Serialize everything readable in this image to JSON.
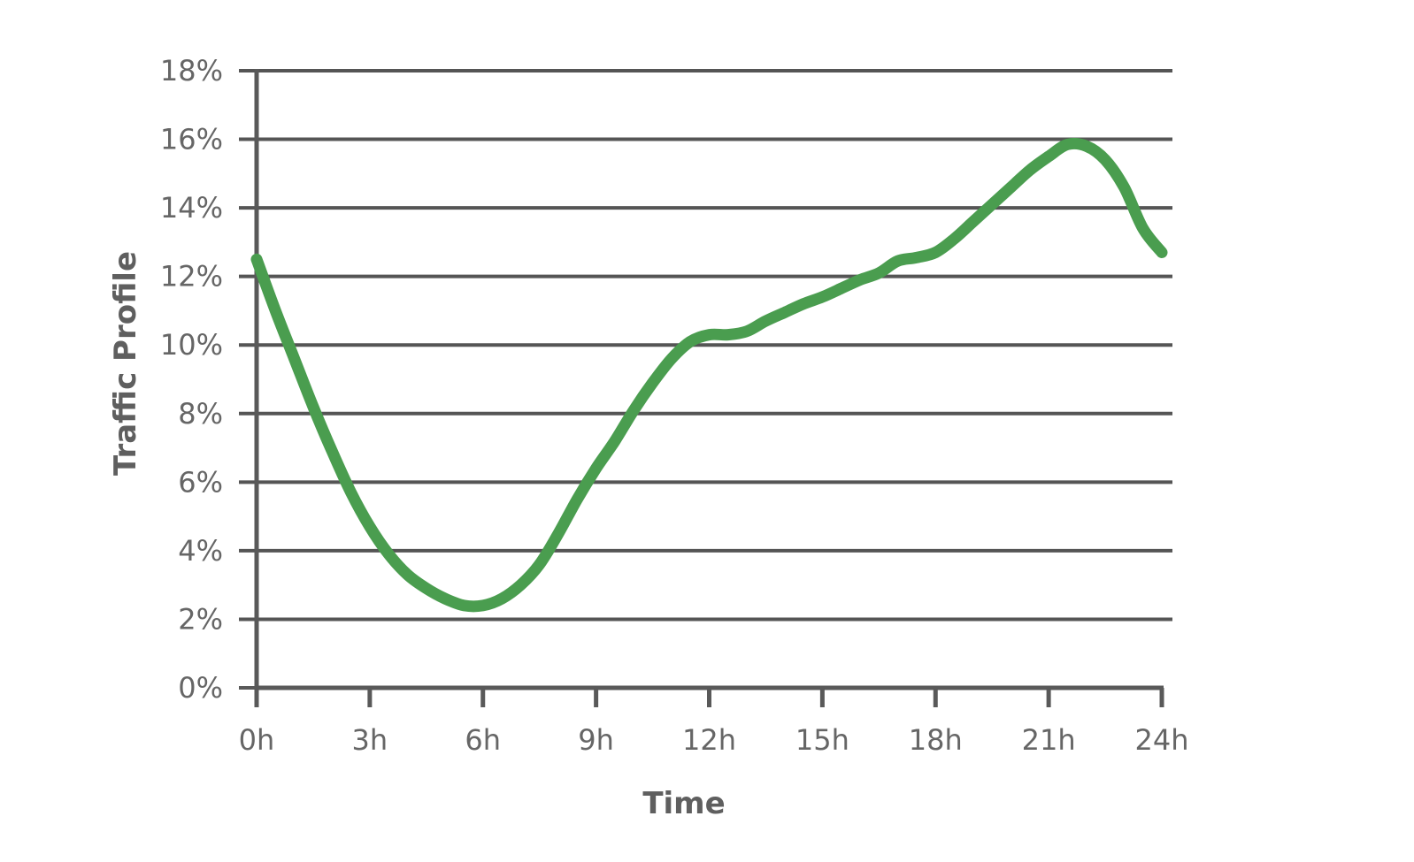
{
  "chart_data": {
    "type": "line",
    "title": "",
    "xlabel": "Time",
    "ylabel": "Traffic Profile",
    "x_ticks": [
      "0h",
      "3h",
      "6h",
      "9h",
      "12h",
      "15h",
      "18h",
      "21h",
      "24h"
    ],
    "y_ticks": [
      "0%",
      "2%",
      "4%",
      "6%",
      "8%",
      "10%",
      "12%",
      "14%",
      "16%",
      "18%"
    ],
    "xlim": [
      0,
      24
    ],
    "ylim": [
      0,
      18
    ],
    "grid": "horizontal",
    "legend": "none",
    "colors": {
      "series": "#4a9d4f",
      "axis": "#595959",
      "grid": "#555555",
      "text": "#666666"
    },
    "series": [
      {
        "x": [
          0,
          0.5,
          1,
          1.5,
          2,
          2.5,
          3,
          3.5,
          4,
          4.5,
          5,
          5.5,
          6,
          6.5,
          7,
          7.5,
          8,
          8.5,
          9,
          9.5,
          10,
          10.5,
          11,
          11.5,
          12,
          12.5,
          13,
          13.5,
          14,
          14.5,
          15,
          15.5,
          16,
          16.5,
          17,
          17.5,
          18,
          18.5,
          19,
          19.5,
          20,
          20.5,
          21,
          21.5,
          22,
          22.5,
          23,
          23.5,
          24
        ],
        "y": [
          12.5,
          11.0,
          9.6,
          8.2,
          6.9,
          5.7,
          4.7,
          3.9,
          3.3,
          2.9,
          2.6,
          2.4,
          2.4,
          2.6,
          3.0,
          3.6,
          4.5,
          5.5,
          6.4,
          7.2,
          8.1,
          8.9,
          9.6,
          10.1,
          10.3,
          10.3,
          10.4,
          10.7,
          10.95,
          11.2,
          11.4,
          11.65,
          11.9,
          12.1,
          12.45,
          12.55,
          12.7,
          13.1,
          13.6,
          14.1,
          14.6,
          15.1,
          15.5,
          15.85,
          15.8,
          15.4,
          14.6,
          13.4,
          12.7
        ]
      }
    ]
  }
}
